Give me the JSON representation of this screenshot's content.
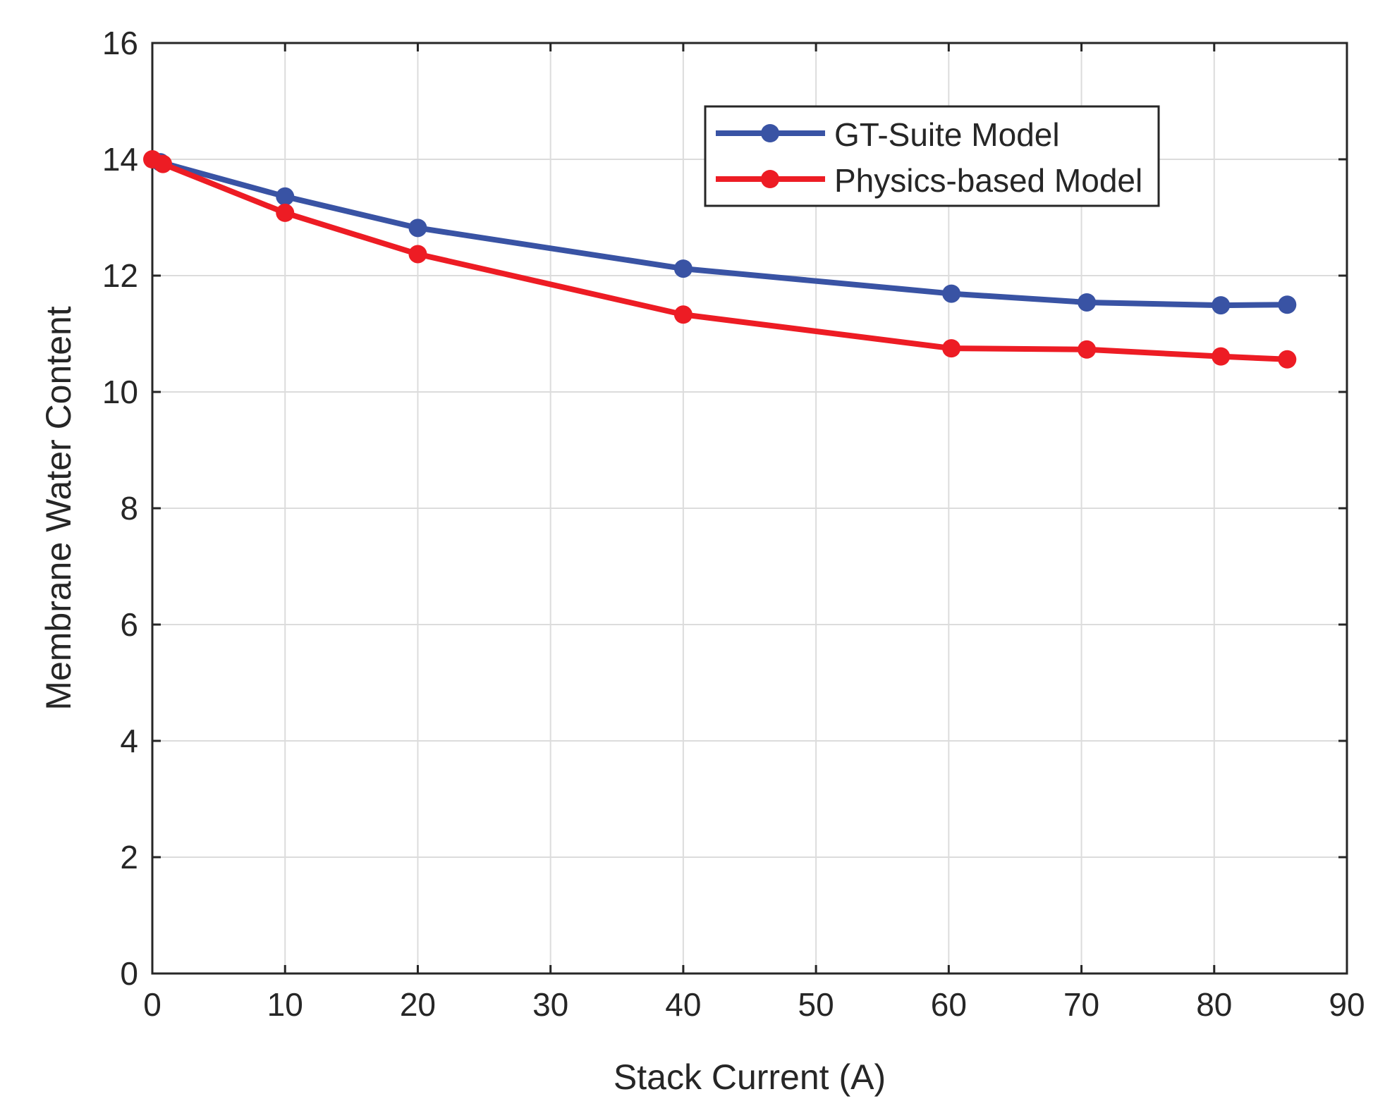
{
  "chart_data": {
    "type": "line",
    "title": "",
    "xlabel": "Stack Current (A)",
    "ylabel": "Membrane Water Content",
    "xlim": [
      0,
      90
    ],
    "ylim": [
      0,
      16
    ],
    "xticks": [
      0,
      10,
      20,
      30,
      40,
      50,
      60,
      70,
      80,
      90
    ],
    "yticks": [
      0,
      2,
      4,
      6,
      8,
      10,
      12,
      14,
      16
    ],
    "grid": true,
    "legend_position": "top-right",
    "series": [
      {
        "name": "GT-Suite Model",
        "color": "#3953a4",
        "marker": "circle",
        "x": [
          0.6,
          10,
          20,
          40,
          60.2,
          70.4,
          80.5,
          85.5
        ],
        "y": [
          13.95,
          13.36,
          12.82,
          12.12,
          11.69,
          11.54,
          11.49,
          11.5
        ]
      },
      {
        "name": "Physics-based Model",
        "color": "#ed1c24",
        "marker": "circle",
        "x": [
          0,
          0.8,
          10,
          20,
          40,
          60.2,
          70.4,
          80.5,
          85.5
        ],
        "y": [
          14.0,
          13.92,
          13.08,
          12.37,
          11.33,
          10.75,
          10.73,
          10.61,
          10.56
        ]
      }
    ]
  }
}
